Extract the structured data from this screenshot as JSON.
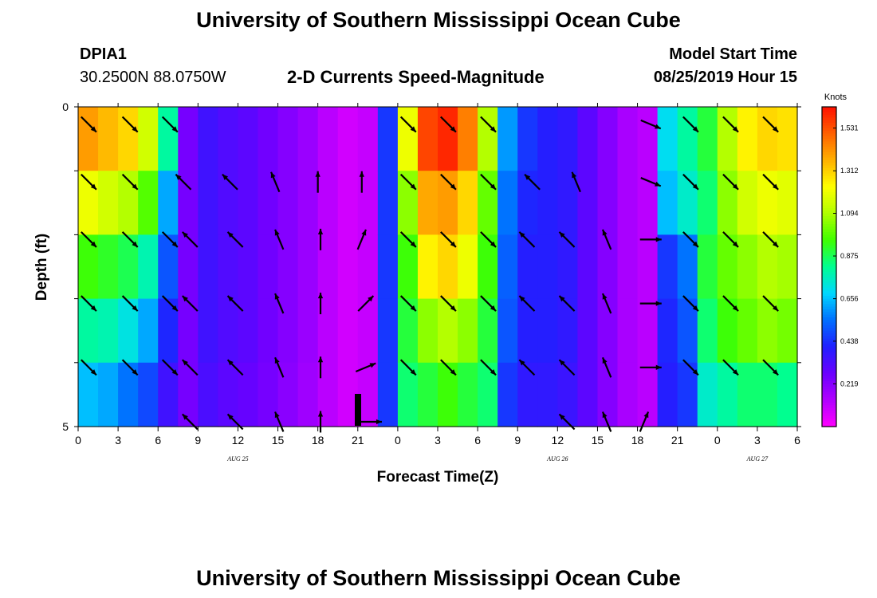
{
  "header": {
    "title_top": "University of Southern Mississippi Ocean Cube",
    "title_bottom": "University of Southern Mississippi Ocean Cube",
    "station_id": "DPIA1",
    "station_coords": "30.2500N 88.0750W",
    "subtitle": "2-D Currents Speed-Magnitude",
    "model_start_label": "Model Start Time",
    "model_start_value": "08/25/2019 Hour 15"
  },
  "colors": {
    "scale": [
      "#ff00ff",
      "#b000ff",
      "#6a00ff",
      "#2020ff",
      "#0070ff",
      "#00d8ff",
      "#00ff90",
      "#40ff00",
      "#b0ff00",
      "#ffff00",
      "#ffb000",
      "#ff6000",
      "#ff1000"
    ]
  },
  "chart_data": {
    "type": "heatmap",
    "title": "2-D Currents Speed-Magnitude",
    "xlabel": "Forecast Time(Z)",
    "ylabel": "Depth (ft)",
    "x_tick_labels": [
      "0",
      "3",
      "6",
      "9",
      "12",
      "15",
      "18",
      "21",
      "0",
      "3",
      "6",
      "9",
      "12",
      "15",
      "18",
      "21",
      "0",
      "3",
      "6"
    ],
    "x_hours": [
      0,
      3,
      6,
      9,
      12,
      15,
      18,
      21,
      24,
      27,
      30,
      33,
      36,
      39,
      42,
      45,
      48,
      51,
      54
    ],
    "date_labels": [
      {
        "text": "AUG 25",
        "hour": 12
      },
      {
        "text": "AUG 26",
        "hour": 36
      },
      {
        "text": "AUG 27",
        "hour": 51
      }
    ],
    "y_tick_labels": [
      "0",
      "5"
    ],
    "ylim": [
      0,
      5
    ],
    "colorbar": {
      "unit": "Knots",
      "labels": [
        "1.531",
        "1.312",
        "1.094",
        "0.875",
        "0.656",
        "0.438",
        "0.219"
      ],
      "values": [
        1.531,
        1.312,
        1.094,
        0.875,
        0.656,
        0.438,
        0.219
      ],
      "range": [
        0,
        1.64
      ]
    },
    "column_hours": [
      0,
      1.5,
      3,
      4.5,
      6,
      7.5,
      9,
      10.5,
      12,
      13.5,
      15,
      16.5,
      18,
      19.5,
      21,
      22.5,
      24,
      25.5,
      27,
      28.5,
      30,
      31.5,
      33,
      34.5,
      36,
      37.5,
      39,
      40.5,
      42,
      43.5,
      45,
      46.5,
      48,
      49.5,
      51,
      52.5
    ],
    "speed_profiles": [
      [
        1.4,
        1.2,
        0.95,
        0.8,
        0.65
      ],
      [
        1.35,
        1.15,
        0.92,
        0.78,
        0.62
      ],
      [
        1.3,
        1.1,
        0.88,
        0.72,
        0.55
      ],
      [
        1.15,
        0.98,
        0.78,
        0.62,
        0.48
      ],
      [
        0.8,
        0.62,
        0.5,
        0.42,
        0.35
      ],
      [
        0.25,
        0.25,
        0.25,
        0.25,
        0.25
      ],
      [
        0.35,
        0.35,
        0.35,
        0.35,
        0.33
      ],
      [
        0.32,
        0.32,
        0.32,
        0.32,
        0.3
      ],
      [
        0.3,
        0.3,
        0.3,
        0.3,
        0.28
      ],
      [
        0.26,
        0.26,
        0.26,
        0.26,
        0.25
      ],
      [
        0.22,
        0.22,
        0.22,
        0.22,
        0.21
      ],
      [
        0.18,
        0.18,
        0.18,
        0.18,
        0.17
      ],
      [
        0.12,
        0.12,
        0.12,
        0.12,
        0.12
      ],
      [
        0.08,
        0.08,
        0.08,
        0.08,
        0.08
      ],
      [
        0.1,
        0.1,
        0.1,
        0.1,
        0.1
      ],
      [
        0.45,
        0.45,
        0.45,
        0.45,
        0.45
      ],
      [
        1.2,
        1.05,
        0.95,
        0.9,
        0.85
      ],
      [
        1.55,
        1.38,
        1.25,
        1.05,
        0.9
      ],
      [
        1.6,
        1.4,
        1.3,
        1.1,
        0.95
      ],
      [
        1.45,
        1.3,
        1.2,
        1.05,
        0.9
      ],
      [
        1.1,
        1.0,
        0.95,
        0.9,
        0.85
      ],
      [
        0.6,
        0.55,
        0.52,
        0.5,
        0.45
      ],
      [
        0.45,
        0.42,
        0.4,
        0.4,
        0.38
      ],
      [
        0.4,
        0.4,
        0.4,
        0.4,
        0.38
      ],
      [
        0.38,
        0.38,
        0.38,
        0.38,
        0.36
      ],
      [
        0.3,
        0.3,
        0.3,
        0.3,
        0.3
      ],
      [
        0.22,
        0.22,
        0.22,
        0.22,
        0.22
      ],
      [
        0.15,
        0.15,
        0.15,
        0.15,
        0.15
      ],
      [
        0.12,
        0.12,
        0.12,
        0.12,
        0.12
      ],
      [
        0.7,
        0.65,
        0.45,
        0.42,
        0.4
      ],
      [
        0.8,
        0.75,
        0.55,
        0.5,
        0.45
      ],
      [
        0.9,
        0.85,
        0.9,
        0.85,
        0.75
      ],
      [
        1.1,
        1.05,
        1.0,
        0.95,
        0.8
      ],
      [
        1.25,
        1.15,
        1.05,
        1.0,
        0.85
      ],
      [
        1.3,
        1.2,
        1.1,
        1.05,
        0.85
      ],
      [
        1.28,
        1.18,
        1.08,
        1.02,
        0.82
      ]
    ],
    "vector_rows": [
      {
        "depth": 0.2,
        "vectors": [
          {
            "hour": 0.8,
            "dir": "SE"
          },
          {
            "hour": 3.9,
            "dir": "SE"
          },
          {
            "hour": 6.9,
            "dir": "SE"
          },
          {
            "hour": 24.8,
            "dir": "SE"
          },
          {
            "hour": 27.8,
            "dir": "SE"
          },
          {
            "hour": 30.8,
            "dir": "SE"
          },
          {
            "hour": 43.0,
            "dir": "ESE"
          },
          {
            "hour": 46.0,
            "dir": "SE"
          },
          {
            "hour": 49.0,
            "dir": "SE"
          },
          {
            "hour": 52.0,
            "dir": "SE"
          }
        ]
      },
      {
        "depth": 1.1,
        "vectors": [
          {
            "hour": 0.8,
            "dir": "SE"
          },
          {
            "hour": 3.9,
            "dir": "SE"
          },
          {
            "hour": 7.9,
            "dir": "NW"
          },
          {
            "hour": 11.4,
            "dir": "NW"
          },
          {
            "hour": 14.8,
            "dir": "NNW"
          },
          {
            "hour": 18.0,
            "dir": "N"
          },
          {
            "hour": 21.3,
            "dir": "N"
          },
          {
            "hour": 24.8,
            "dir": "SE"
          },
          {
            "hour": 27.8,
            "dir": "SE"
          },
          {
            "hour": 30.8,
            "dir": "SE"
          },
          {
            "hour": 34.1,
            "dir": "NW"
          },
          {
            "hour": 37.4,
            "dir": "NNW"
          },
          {
            "hour": 43.0,
            "dir": "ESE"
          },
          {
            "hour": 46.0,
            "dir": "SE"
          },
          {
            "hour": 49.0,
            "dir": "SE"
          },
          {
            "hour": 52.0,
            "dir": "SE"
          }
        ]
      },
      {
        "depth": 2.0,
        "vectors": [
          {
            "hour": 0.8,
            "dir": "SE"
          },
          {
            "hour": 3.9,
            "dir": "SE"
          },
          {
            "hour": 6.9,
            "dir": "SE"
          },
          {
            "hour": 8.4,
            "dir": "NW"
          },
          {
            "hour": 11.8,
            "dir": "NW"
          },
          {
            "hour": 15.1,
            "dir": "NNW"
          },
          {
            "hour": 18.2,
            "dir": "N"
          },
          {
            "hour": 21.3,
            "dir": "NNE"
          },
          {
            "hour": 24.8,
            "dir": "SE"
          },
          {
            "hour": 27.8,
            "dir": "SE"
          },
          {
            "hour": 30.8,
            "dir": "SE"
          },
          {
            "hour": 33.7,
            "dir": "NW"
          },
          {
            "hour": 36.7,
            "dir": "NW"
          },
          {
            "hour": 39.7,
            "dir": "NNW"
          },
          {
            "hour": 43.0,
            "dir": "E"
          },
          {
            "hour": 46.0,
            "dir": "SE"
          },
          {
            "hour": 49.0,
            "dir": "SE"
          },
          {
            "hour": 52.0,
            "dir": "SE"
          }
        ]
      },
      {
        "depth": 3.0,
        "vectors": [
          {
            "hour": 0.8,
            "dir": "SE"
          },
          {
            "hour": 3.9,
            "dir": "SE"
          },
          {
            "hour": 6.9,
            "dir": "SE"
          },
          {
            "hour": 8.4,
            "dir": "NW"
          },
          {
            "hour": 11.8,
            "dir": "NW"
          },
          {
            "hour": 15.1,
            "dir": "NNW"
          },
          {
            "hour": 18.2,
            "dir": "N"
          },
          {
            "hour": 21.6,
            "dir": "NE"
          },
          {
            "hour": 24.8,
            "dir": "SE"
          },
          {
            "hour": 27.8,
            "dir": "SE"
          },
          {
            "hour": 30.8,
            "dir": "SE"
          },
          {
            "hour": 33.7,
            "dir": "NW"
          },
          {
            "hour": 36.7,
            "dir": "NW"
          },
          {
            "hour": 39.7,
            "dir": "NNW"
          },
          {
            "hour": 43.0,
            "dir": "E"
          },
          {
            "hour": 46.0,
            "dir": "SE"
          },
          {
            "hour": 49.0,
            "dir": "SE"
          },
          {
            "hour": 52.0,
            "dir": "SE"
          }
        ]
      },
      {
        "depth": 4.0,
        "vectors": [
          {
            "hour": 0.8,
            "dir": "SE"
          },
          {
            "hour": 3.9,
            "dir": "SE"
          },
          {
            "hour": 6.9,
            "dir": "SE"
          },
          {
            "hour": 8.4,
            "dir": "NW"
          },
          {
            "hour": 11.8,
            "dir": "NW"
          },
          {
            "hour": 15.1,
            "dir": "NNW"
          },
          {
            "hour": 18.2,
            "dir": "N"
          },
          {
            "hour": 21.6,
            "dir": "ENE"
          },
          {
            "hour": 24.8,
            "dir": "SE"
          },
          {
            "hour": 27.8,
            "dir": "SE"
          },
          {
            "hour": 30.8,
            "dir": "SE"
          },
          {
            "hour": 33.7,
            "dir": "NW"
          },
          {
            "hour": 36.7,
            "dir": "NW"
          },
          {
            "hour": 39.7,
            "dir": "NNW"
          },
          {
            "hour": 43.0,
            "dir": "E"
          },
          {
            "hour": 46.0,
            "dir": "SE"
          },
          {
            "hour": 49.0,
            "dir": "SE"
          },
          {
            "hour": 52.0,
            "dir": "SE"
          }
        ]
      },
      {
        "depth": 4.85,
        "vectors": [
          {
            "hour": 8.4,
            "dir": "NW"
          },
          {
            "hour": 11.8,
            "dir": "NW"
          },
          {
            "hour": 15.1,
            "dir": "NNW"
          },
          {
            "hour": 18.2,
            "dir": "N"
          },
          {
            "hour": 22.0,
            "dir": "E"
          },
          {
            "hour": 36.7,
            "dir": "NW"
          },
          {
            "hour": 39.7,
            "dir": "NNW"
          },
          {
            "hour": 42.5,
            "dir": "NNE"
          }
        ]
      }
    ]
  }
}
